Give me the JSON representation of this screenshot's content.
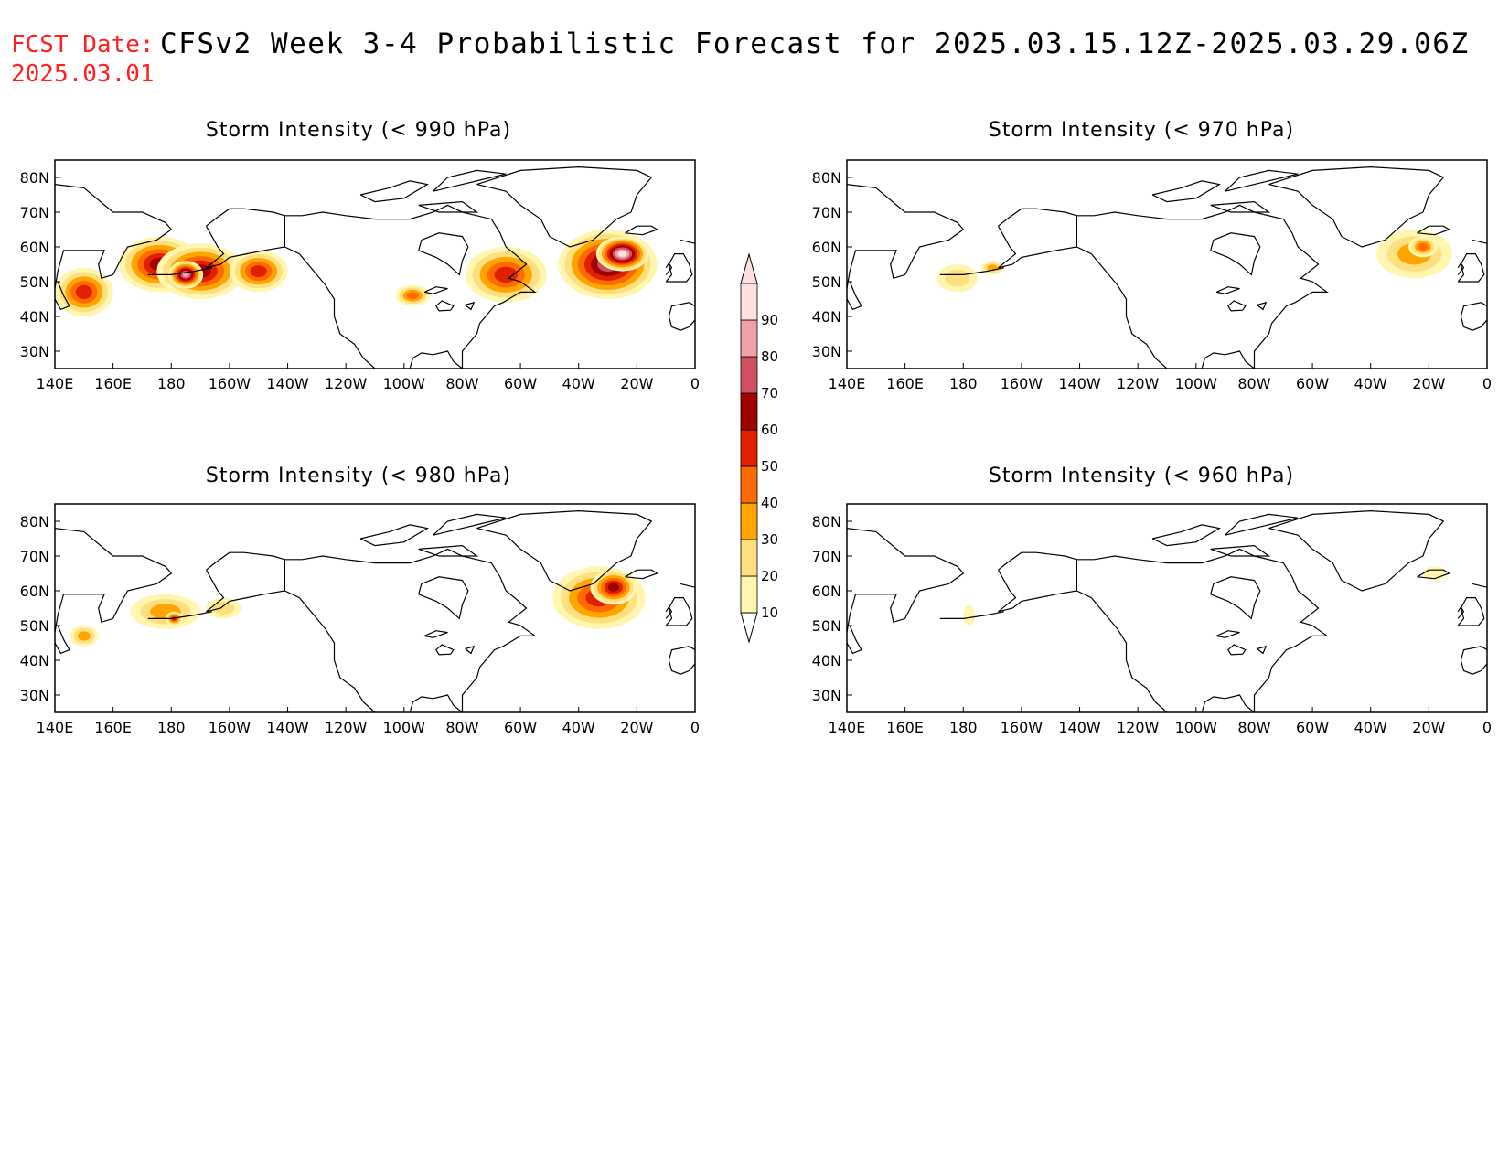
{
  "header": {
    "fcst_label": "FCST Date:",
    "fcst_date": "2025.03.01",
    "title": "CFSv2 Week 3-4 Probabilistic Forecast for 2025.03.15.12Z-2025.03.29.06Z"
  },
  "axes": {
    "lon_ticks": [
      "140E",
      "160E",
      "180",
      "160W",
      "140W",
      "120W",
      "100W",
      "80W",
      "60W",
      "40W",
      "20W",
      "0"
    ],
    "lat_ticks": [
      "80N",
      "70N",
      "60N",
      "50N",
      "40N",
      "30N"
    ],
    "lon_range_deg": [
      140,
      360
    ],
    "lat_range_deg": [
      25,
      85
    ]
  },
  "colorbar": {
    "levels": [
      "10",
      "20",
      "30",
      "40",
      "50",
      "60",
      "70",
      "80",
      "90"
    ],
    "colors": [
      "#fff6b0",
      "#ffe080",
      "#ffa500",
      "#ff6a00",
      "#e02000",
      "#a00000",
      "#d05060",
      "#f0a0a8",
      "#ffe0e0"
    ]
  },
  "panels": [
    {
      "id": "p990",
      "title": "Storm Intensity (< 990 hPa)",
      "blobs": [
        {
          "lon": 150,
          "lat": 47,
          "rx": 10,
          "ry": 7,
          "level": 5
        },
        {
          "lon": 176,
          "lat": 55,
          "rx": 14,
          "ry": 8,
          "level": 6
        },
        {
          "lon": 190,
          "lat": 53,
          "rx": 15,
          "ry": 8,
          "level": 6
        },
        {
          "lon": 210,
          "lat": 53,
          "rx": 10,
          "ry": 6,
          "level": 5
        },
        {
          "lon": 185,
          "lat": 52,
          "rx": 6,
          "ry": 4,
          "level": 8
        },
        {
          "lon": 263,
          "lat": 46,
          "rx": 6,
          "ry": 3,
          "level": 4
        },
        {
          "lon": 295,
          "lat": 52,
          "rx": 14,
          "ry": 8,
          "level": 5
        },
        {
          "lon": 330,
          "lat": 55,
          "rx": 17,
          "ry": 10,
          "level": 7
        },
        {
          "lon": 335,
          "lat": 58,
          "rx": 9,
          "ry": 5,
          "level": 9
        }
      ]
    },
    {
      "id": "p970",
      "title": "Storm Intensity (< 970 hPa)",
      "blobs": [
        {
          "lon": 178,
          "lat": 51,
          "rx": 7,
          "ry": 4,
          "level": 2
        },
        {
          "lon": 190,
          "lat": 54,
          "rx": 4,
          "ry": 2,
          "level": 3
        },
        {
          "lon": 335,
          "lat": 58,
          "rx": 13,
          "ry": 7,
          "level": 3
        },
        {
          "lon": 338,
          "lat": 60,
          "rx": 5,
          "ry": 3,
          "level": 4
        }
      ]
    },
    {
      "id": "p980",
      "title": "Storm Intensity (< 980 hPa)",
      "blobs": [
        {
          "lon": 150,
          "lat": 47,
          "rx": 5,
          "ry": 3,
          "level": 3
        },
        {
          "lon": 178,
          "lat": 54,
          "rx": 12,
          "ry": 5,
          "level": 3
        },
        {
          "lon": 181,
          "lat": 52,
          "rx": 3,
          "ry": 2,
          "level": 5
        },
        {
          "lon": 198,
          "lat": 55,
          "rx": 6,
          "ry": 3,
          "level": 2
        },
        {
          "lon": 327,
          "lat": 58,
          "rx": 16,
          "ry": 9,
          "level": 5
        },
        {
          "lon": 332,
          "lat": 61,
          "rx": 8,
          "ry": 5,
          "level": 6
        }
      ]
    },
    {
      "id": "p960",
      "title": "Storm Intensity (< 960 hPa)",
      "blobs": [
        {
          "lon": 182,
          "lat": 53,
          "rx": 2,
          "ry": 3,
          "level": 1
        },
        {
          "lon": 342,
          "lat": 65,
          "rx": 4,
          "ry": 2,
          "level": 1
        }
      ]
    }
  ]
}
